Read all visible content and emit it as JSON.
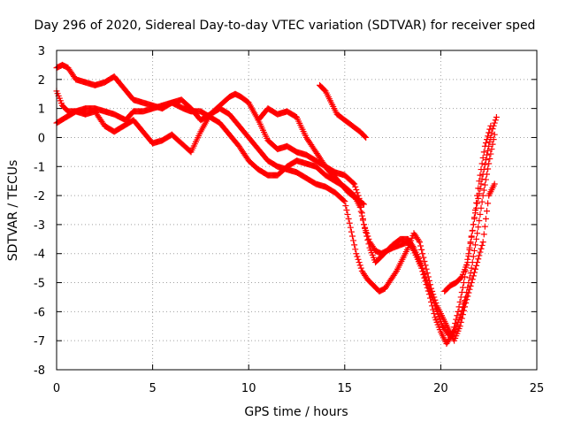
{
  "chart_data": {
    "type": "scatter",
    "title": "Day 296 of 2020, Sidereal Day-to-day VTEC variation (SDTVAR) for receiver sped",
    "xlabel": "GPS time / hours",
    "ylabel": "SDTVAR / TECUs",
    "xlim": [
      0,
      25
    ],
    "ylim": [
      -8,
      3
    ],
    "xticks": [
      0,
      5,
      10,
      15,
      20,
      25
    ],
    "yticks": [
      -8,
      -7,
      -6,
      -5,
      -4,
      -3,
      -2,
      -1,
      0,
      1,
      2,
      3
    ],
    "grid": true,
    "marker": "plus",
    "color": "#ff0000",
    "series": [
      {
        "x": [
          0.0,
          0.3,
          0.6,
          1.0,
          1.5,
          2.0,
          2.5,
          3.0,
          3.3,
          3.6,
          4.0,
          4.5,
          5.0,
          5.5,
          6.0,
          6.3,
          6.6,
          7.0,
          7.5,
          8.0,
          8.5,
          9.0,
          9.5,
          10.0,
          10.5,
          11.0,
          11.5,
          12.0,
          12.5,
          13.0,
          13.5,
          14.0,
          14.5,
          15.0,
          15.5,
          15.8,
          16.0,
          16.3,
          16.6,
          16.9,
          17.2,
          17.5,
          17.9,
          18.3,
          18.6,
          19.0,
          19.4,
          19.8,
          20.1,
          20.4,
          20.7,
          21.0,
          21.3,
          21.6,
          21.9,
          22.2,
          22.5,
          22.8
        ],
        "y": [
          1.6,
          1.1,
          0.9,
          0.9,
          1.0,
          1.0,
          0.9,
          0.8,
          0.7,
          0.6,
          0.9,
          0.9,
          1.0,
          1.1,
          1.2,
          1.1,
          1.0,
          0.9,
          0.9,
          0.7,
          0.5,
          0.1,
          -0.3,
          -0.8,
          -1.1,
          -1.3,
          -1.3,
          -1.0,
          -0.8,
          -0.9,
          -1.0,
          -1.3,
          -1.5,
          -1.7,
          -2.0,
          -2.4,
          -3.0,
          -3.8,
          -4.3,
          -4.1,
          -3.9,
          -3.7,
          -3.5,
          -3.5,
          -3.8,
          -4.4,
          -5.2,
          -6.0,
          -6.5,
          -6.8,
          -6.7,
          -6.2,
          -5.5,
          -4.5,
          -3.3,
          -2.0,
          -0.9,
          0.1
        ]
      },
      {
        "x": [
          0.0,
          0.3,
          0.6,
          1.0,
          1.5,
          2.0,
          2.5,
          3.0,
          3.5,
          4.0,
          4.5,
          5.0,
          5.5,
          6.0,
          6.5,
          7.0,
          7.5,
          8.0,
          8.5,
          9.0,
          9.3,
          9.6,
          10.0,
          10.5,
          11.0,
          11.5,
          12.0,
          12.5,
          13.0,
          13.5,
          14.0,
          14.5,
          15.0,
          15.5,
          15.8,
          16.0,
          16.3,
          16.6,
          16.9,
          17.2,
          17.5,
          17.9,
          18.3,
          18.6,
          19.0,
          19.4,
          19.7,
          20.0,
          20.3,
          20.6,
          20.9,
          21.2,
          21.5,
          21.8,
          22.1,
          22.4,
          22.7,
          22.9
        ],
        "y": [
          2.4,
          2.5,
          2.4,
          2.0,
          1.9,
          1.8,
          1.9,
          2.1,
          1.7,
          1.3,
          1.2,
          1.1,
          1.0,
          1.2,
          1.3,
          1.0,
          0.6,
          0.8,
          1.1,
          1.4,
          1.5,
          1.4,
          1.2,
          0.6,
          -0.1,
          -0.4,
          -0.3,
          -0.5,
          -0.6,
          -0.8,
          -1.0,
          -1.2,
          -1.3,
          -1.6,
          -2.2,
          -3.0,
          -3.6,
          -3.9,
          -4.0,
          -3.9,
          -3.8,
          -3.7,
          -3.6,
          -3.9,
          -4.5,
          -5.4,
          -6.2,
          -6.7,
          -7.1,
          -6.8,
          -6.0,
          -5.0,
          -3.8,
          -2.6,
          -1.6,
          -0.6,
          0.3,
          0.7
        ]
      },
      {
        "x": [
          0.0,
          0.5,
          1.0,
          1.5,
          2.0,
          2.5,
          3.0,
          3.5,
          4.0,
          4.5,
          5.0,
          5.5,
          6.0,
          6.5,
          7.0,
          7.5,
          8.0,
          8.5,
          9.0,
          9.5,
          10.0,
          10.5,
          11.0,
          11.5,
          12.0,
          12.5,
          13.0,
          13.5,
          14.0,
          14.5,
          15.0,
          15.3,
          15.6,
          15.9,
          16.2,
          16.5,
          16.8,
          17.1,
          17.4,
          17.7,
          18.0,
          18.3,
          18.6,
          18.9,
          19.2,
          19.5,
          19.8,
          20.1,
          20.4,
          20.7,
          21.0,
          21.3,
          21.6,
          21.9,
          22.2,
          22.5,
          22.8
        ],
        "y": [
          0.5,
          0.7,
          0.9,
          0.8,
          0.9,
          0.4,
          0.2,
          0.4,
          0.6,
          0.2,
          -0.2,
          -0.1,
          0.1,
          -0.2,
          -0.5,
          0.2,
          0.8,
          1.0,
          0.8,
          0.4,
          0.0,
          -0.4,
          -0.8,
          -1.0,
          -1.1,
          -1.2,
          -1.4,
          -1.6,
          -1.7,
          -1.9,
          -2.2,
          -3.1,
          -4.0,
          -4.6,
          -4.9,
          -5.1,
          -5.3,
          -5.2,
          -4.9,
          -4.6,
          -4.2,
          -3.8,
          -3.3,
          -3.6,
          -4.4,
          -5.2,
          -5.8,
          -6.2,
          -6.6,
          -7.0,
          -6.5,
          -5.7,
          -5.0,
          -4.3,
          -3.6,
          -2.0,
          -1.6
        ]
      },
      {
        "x": [
          10.5,
          11.0,
          11.5,
          12.0,
          12.5,
          13.0,
          13.5,
          13.8,
          14.1,
          14.4,
          14.8,
          15.2,
          15.6,
          16.0
        ],
        "y": [
          0.6,
          1.0,
          0.8,
          0.9,
          0.7,
          0.0,
          -0.5,
          -0.8,
          -1.1,
          -1.3,
          -1.6,
          -1.9,
          -2.1,
          -2.3
        ]
      },
      {
        "x": [
          13.7,
          14.0,
          14.3,
          14.6,
          15.0,
          15.4,
          15.8,
          16.1
        ],
        "y": [
          1.8,
          1.6,
          1.2,
          0.8,
          0.6,
          0.4,
          0.2,
          0.0
        ]
      },
      {
        "x": [
          20.2,
          20.5,
          20.8,
          21.1,
          21.4,
          21.7,
          22.0,
          22.3,
          22.6
        ],
        "y": [
          -5.3,
          -5.1,
          -5.0,
          -4.8,
          -4.3,
          -3.0,
          -1.5,
          -0.3,
          0.4
        ]
      }
    ]
  }
}
